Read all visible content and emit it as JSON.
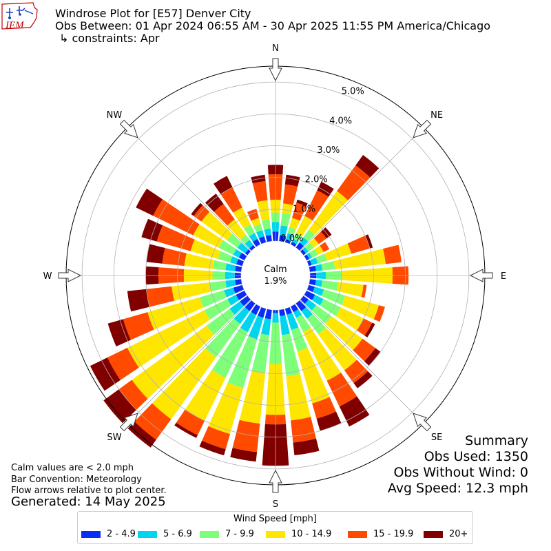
{
  "header": {
    "logo_text": "IEM",
    "title": "Windrose Plot for [E57] Denver City",
    "subtitle": "Obs Between: 01 Apr 2024 06:55 AM - 30 Apr 2025 11:55 PM America/Chicago",
    "constraints": "↳ constraints: Apr"
  },
  "notes": {
    "calm_def": "Calm values are < 2.0 mph",
    "bar_convention": "Bar Convention: Meteorology",
    "flow_arrows": "Flow arrows relative to plot center.",
    "generated": "Generated: 14 May 2025"
  },
  "summary": {
    "heading": "Summary",
    "obs_used": "Obs Used: 1350",
    "obs_without_wind": "Obs Without Wind: 0",
    "avg_speed": "Avg Speed: 12.3 mph"
  },
  "chart_data": {
    "type": "windrose",
    "calm_label": "Calm",
    "calm_value": "1.9%",
    "calm_percent": 1.9,
    "r_ticks": [
      "0.0%",
      "1.0%",
      "2.0%",
      "3.0%",
      "4.0%",
      "5.0%"
    ],
    "r_max": 5.5,
    "compass": [
      "N",
      "NE",
      "E",
      "SE",
      "S",
      "SW",
      "W",
      "NW"
    ],
    "legend_title": "Wind Speed [mph]",
    "bins": [
      {
        "label": "2 - 4.9",
        "color": "#0a2cf5"
      },
      {
        "label": "5 - 6.9",
        "color": "#00d4ee"
      },
      {
        "label": "7 - 9.9",
        "color": "#7dff7a"
      },
      {
        "label": "10 - 14.9",
        "color": "#ffe600"
      },
      {
        "label": "15 - 19.9",
        "color": "#ff4a00"
      },
      {
        "label": "20+",
        "color": "#800000"
      }
    ],
    "directions_deg": [
      0,
      10,
      20,
      30,
      40,
      50,
      60,
      70,
      80,
      90,
      100,
      110,
      120,
      130,
      140,
      150,
      160,
      170,
      180,
      190,
      200,
      210,
      220,
      230,
      240,
      250,
      260,
      270,
      280,
      290,
      300,
      310,
      320,
      330,
      340,
      350
    ],
    "cumulative_percent": [
      [
        0.3,
        0.6,
        0.9,
        1.3,
        2.1,
        2.4
      ],
      [
        0.2,
        0.5,
        0.9,
        1.2,
        1.8,
        2.1
      ],
      [
        0.1,
        0.3,
        0.5,
        0.8,
        1.3,
        1.4
      ],
      [
        0.1,
        0.2,
        0.4,
        1.0,
        1.9,
        2.2
      ],
      [
        0.2,
        0.4,
        0.7,
        2.2,
        3.2,
        3.6
      ],
      [
        0.1,
        0.2,
        0.4,
        0.6,
        0.9,
        1.1
      ],
      [
        0.1,
        0.2,
        0.4,
        0.6,
        0.8,
        0.8
      ],
      [
        0.1,
        0.3,
        0.6,
        1.4,
        2.0,
        2.1
      ],
      [
        0.2,
        0.4,
        0.8,
        2.4,
        2.9,
        2.9
      ],
      [
        0.2,
        0.5,
        1.0,
        2.6,
        3.1,
        3.1
      ],
      [
        0.2,
        0.4,
        0.9,
        1.7,
        1.8,
        1.8
      ],
      [
        0.2,
        0.5,
        1.2,
        2.3,
        2.5,
        2.5
      ],
      [
        0.3,
        0.6,
        1.2,
        2.0,
        2.3,
        2.4
      ],
      [
        0.2,
        0.5,
        1.1,
        2.3,
        2.8,
        3.0
      ],
      [
        0.3,
        0.6,
        1.2,
        2.6,
        3.1,
        3.3
      ],
      [
        0.2,
        0.4,
        0.9,
        2.6,
        3.5,
        4.2
      ],
      [
        0.2,
        0.7,
        1.4,
        3.1,
        3.6,
        4.0
      ],
      [
        0.2,
        0.8,
        2.1,
        3.5,
        4.2,
        4.6
      ],
      [
        0.1,
        0.4,
        1.7,
        3.3,
        3.6,
        4.9
      ],
      [
        0.3,
        0.8,
        2.0,
        3.6,
        4.5,
        4.8
      ],
      [
        0.3,
        1.0,
        2.6,
        4.1,
        4.6,
        4.8
      ],
      [
        0.3,
        0.9,
        2.5,
        4.0,
        4.5,
        4.6
      ],
      [
        0.3,
        0.8,
        2.1,
        4.5,
        5.3,
        5.6
      ],
      [
        0.3,
        0.7,
        1.6,
        4.5,
        5.0,
        5.6
      ],
      [
        0.3,
        0.6,
        1.4,
        4.1,
        4.8,
        5.4
      ],
      [
        0.3,
        0.6,
        1.4,
        3.1,
        3.9,
        4.4
      ],
      [
        0.2,
        0.5,
        1.0,
        2.2,
        3.0,
        3.6
      ],
      [
        0.2,
        0.5,
        0.9,
        1.8,
        2.6,
        3.0
      ],
      [
        0.2,
        0.5,
        0.9,
        1.8,
        2.5,
        3.0
      ],
      [
        0.2,
        0.4,
        0.8,
        1.7,
        2.8,
        3.3
      ],
      [
        0.2,
        0.4,
        0.9,
        1.8,
        3.2,
        3.8
      ],
      [
        0.1,
        0.4,
        0.8,
        1.8,
        2.1,
        2.2
      ],
      [
        0.1,
        0.3,
        0.5,
        1.1,
        1.7,
        2.1
      ],
      [
        0.2,
        0.4,
        0.7,
        1.3,
        2.0,
        2.4
      ],
      [
        0.2,
        0.4,
        0.6,
        0.8,
        1.1,
        1.1
      ],
      [
        0.2,
        0.4,
        0.7,
        1.3,
        1.9,
        2.1
      ]
    ]
  }
}
